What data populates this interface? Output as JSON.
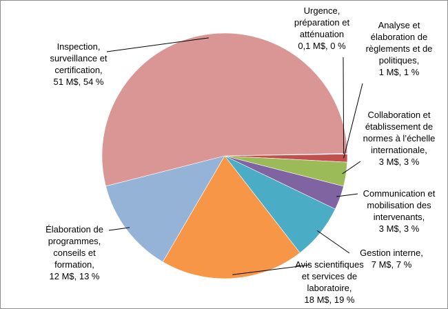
{
  "chart_data": {
    "type": "pie",
    "title": "",
    "unit": "M$",
    "slices": [
      {
        "name": "Urgence, préparation et atténuation",
        "value": 0.1,
        "percent": 0,
        "color": "#4f81bd",
        "label_lines": [
          "Urgence,",
          "préparation et",
          "atténuation",
          "0,1 M$, 0 %"
        ]
      },
      {
        "name": "Analyse et élaboration de règlements et de politiques",
        "value": 1,
        "percent": 1,
        "color": "#c0504d",
        "label_lines": [
          "Analyse et",
          "élaboration de",
          "règlements et de",
          "politiques,",
          "1 M$, 1 %"
        ]
      },
      {
        "name": "Collaboration et établissement de normes à l’échelle internationale",
        "value": 3,
        "percent": 3,
        "color": "#9bbb59",
        "label_lines": [
          "Collaboration et",
          "établissement de",
          "normes à l’échelle",
          "internationale,",
          "3 M$, 3 %"
        ]
      },
      {
        "name": "Communication et mobilisation des intervenants",
        "value": 3,
        "percent": 3,
        "color": "#8064a2",
        "label_lines": [
          "Communication et",
          "mobilisation des",
          "intervenants,",
          "3 M$, 3 %"
        ]
      },
      {
        "name": "Gestion interne",
        "value": 7,
        "percent": 7,
        "color": "#4bacc6",
        "label_lines": [
          "Gestion interne,",
          "7 M$, 7 %"
        ]
      },
      {
        "name": "Avis scientifiques et services de laboratoire",
        "value": 18,
        "percent": 19,
        "color": "#f79646",
        "label_lines": [
          "Avis scientifiques",
          "et services de",
          "laboratoire,",
          "18 M$, 19 %"
        ]
      },
      {
        "name": "Élaboration de programmes, conseils et formation",
        "value": 12,
        "percent": 13,
        "color": "#95b3d7",
        "label_lines": [
          "Élaboration de",
          "programmes,",
          "conseils et",
          "formation,",
          "12 M$, 13 %"
        ]
      },
      {
        "name": "Inspection, surveillance et certification",
        "value": 51,
        "percent": 54,
        "color": "#d99694",
        "label_lines": [
          "Inspection,",
          "surveillance et",
          "certification,",
          "51 M$, 54 %"
        ]
      }
    ]
  }
}
